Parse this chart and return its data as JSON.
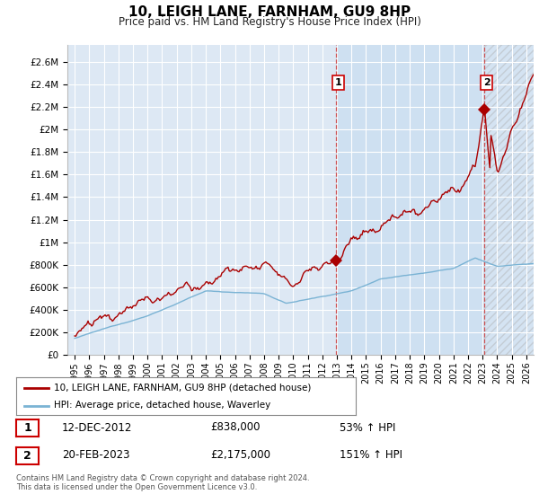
{
  "title": "10, LEIGH LANE, FARNHAM, GU9 8HP",
  "subtitle": "Price paid vs. HM Land Registry's House Price Index (HPI)",
  "ylabel_ticks": [
    "£0",
    "£200K",
    "£400K",
    "£600K",
    "£800K",
    "£1M",
    "£1.2M",
    "£1.4M",
    "£1.6M",
    "£1.8M",
    "£2M",
    "£2.2M",
    "£2.4M",
    "£2.6M"
  ],
  "ytick_values": [
    0,
    200000,
    400000,
    600000,
    800000,
    1000000,
    1200000,
    1400000,
    1600000,
    1800000,
    2000000,
    2200000,
    2400000,
    2600000
  ],
  "ylim": [
    0,
    2750000
  ],
  "xmin_year": 1994.5,
  "xmax_year": 2026.5,
  "x_ticks": [
    1995,
    1996,
    1997,
    1998,
    1999,
    2000,
    2001,
    2002,
    2003,
    2004,
    2005,
    2006,
    2007,
    2008,
    2009,
    2010,
    2011,
    2012,
    2013,
    2014,
    2015,
    2016,
    2017,
    2018,
    2019,
    2020,
    2021,
    2022,
    2023,
    2024,
    2025,
    2026
  ],
  "hpi_color": "#7ab3d4",
  "price_color": "#aa0000",
  "marker1_x": 2012.96,
  "marker1_y": 838000,
  "marker2_x": 2023.12,
  "marker2_y": 2175000,
  "vline1_x": 2012.96,
  "vline2_x": 2023.12,
  "shade_start": 2012.96,
  "shade_end": 2023.12,
  "hatch_start": 2023.12,
  "legend_label1": "10, LEIGH LANE, FARNHAM, GU9 8HP (detached house)",
  "legend_label2": "HPI: Average price, detached house, Waverley",
  "note1_num": "1",
  "note1_date": "12-DEC-2012",
  "note1_price": "£838,000",
  "note1_hpi": "53% ↑ HPI",
  "note2_num": "2",
  "note2_date": "20-FEB-2023",
  "note2_price": "£2,175,000",
  "note2_hpi": "151% ↑ HPI",
  "footer": "Contains HM Land Registry data © Crown copyright and database right 2024.\nThis data is licensed under the Open Government Licence v3.0.",
  "background_color": "#dde8f4",
  "plot_bg": "#dde8f4",
  "grid_color": "#ffffff"
}
